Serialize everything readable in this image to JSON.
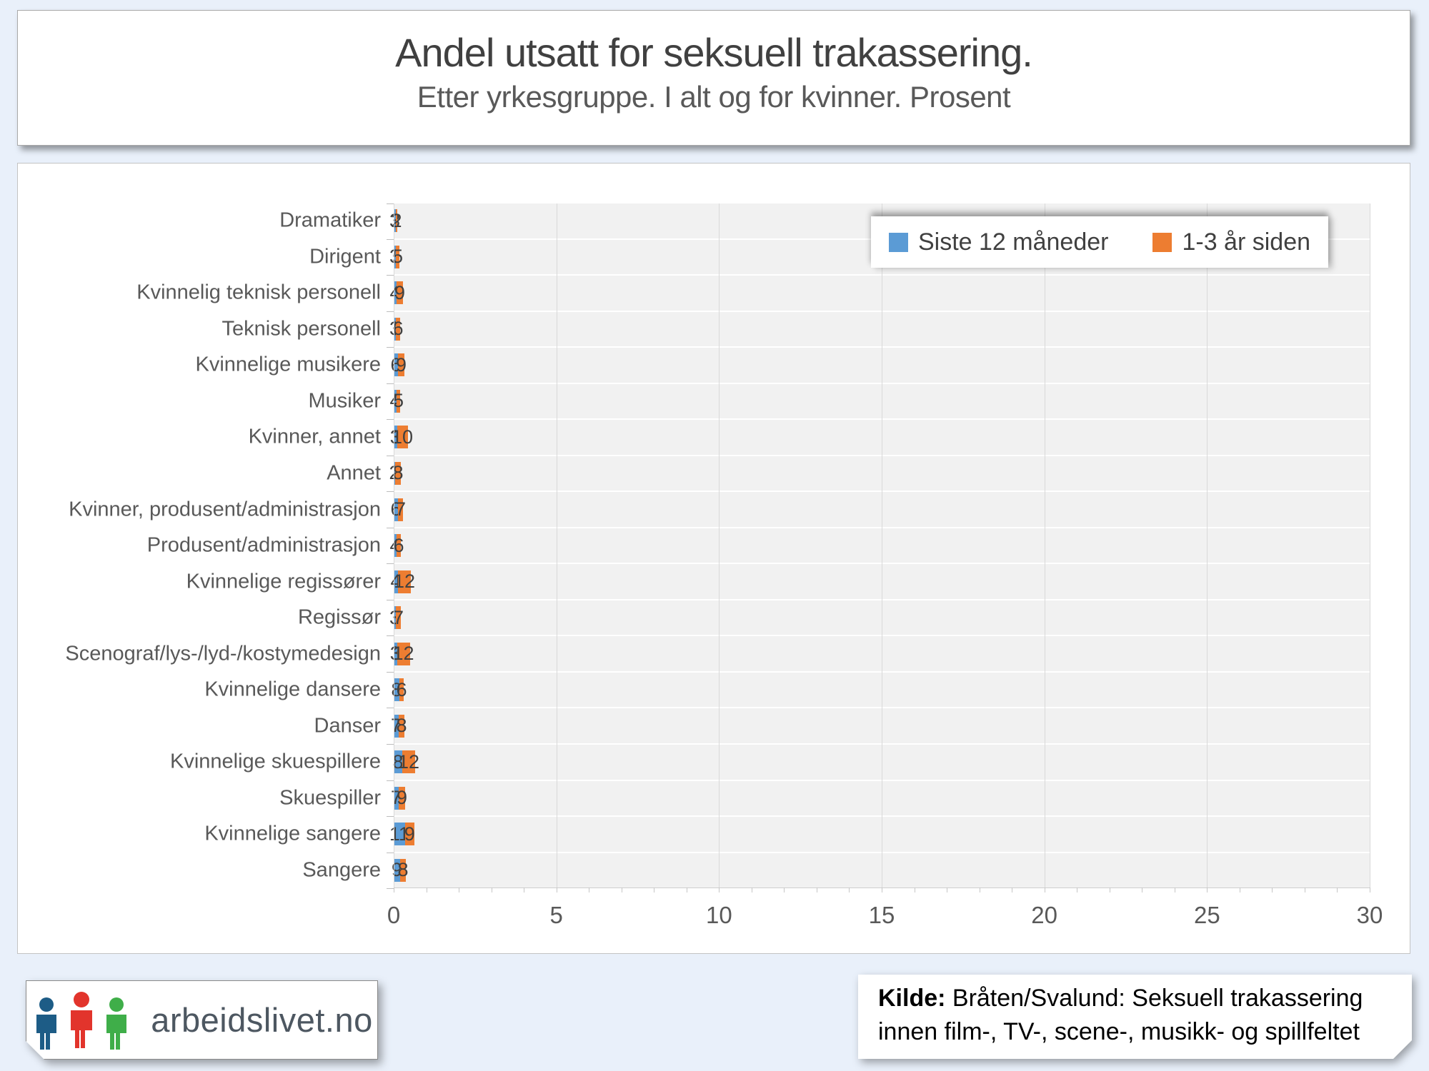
{
  "page": {
    "title": "Andel utsatt for seksuell trakassering.",
    "subtitle": "Etter yrkesgruppe. I alt og for kvinner. Prosent"
  },
  "chart_data": {
    "type": "bar",
    "orientation": "horizontal",
    "stacked": true,
    "title": "Andel utsatt for seksuell trakassering.",
    "subtitle": "Etter yrkesgruppe. I alt og for kvinner. Prosent",
    "xlim": [
      0,
      30
    ],
    "x_ticks": [
      0,
      5,
      10,
      15,
      20,
      25,
      30
    ],
    "minor_tick_step": 1,
    "grid": "vertical",
    "legend_position": "inside-top-right",
    "plot_background": "#f1f1f1",
    "categories": [
      "Dramatiker",
      "Dirigent",
      "Kvinnelig teknisk personell",
      "Teknisk personell",
      "Kvinnelige musikere",
      "Musiker",
      "Kvinner, annet",
      "Annet",
      "Kvinner, produsent/administrasjon",
      "Produsent/administrasjon",
      "Kvinnelige regissører",
      "Regissør",
      "Scenograf/lys-/lyd-/kostymedesign",
      "Kvinnelige dansere",
      "Danser",
      "Kvinnelige skuespillere",
      "Skuespiller",
      "Kvinnelige sangere",
      "Sangere"
    ],
    "series": [
      {
        "name": "Siste 12 måneder",
        "color": "#5B9BD5",
        "values": [
          3,
          3,
          4,
          3,
          6,
          4,
          3,
          2,
          6,
          4,
          4,
          3,
          3,
          8,
          7,
          8,
          7,
          11,
          9
        ]
      },
      {
        "name": "1-3 år siden",
        "color": "#ED7D31",
        "values": [
          2,
          5,
          9,
          6,
          9,
          5,
          10,
          8,
          7,
          6,
          12,
          7,
          12,
          6,
          8,
          12,
          9,
          9,
          8
        ]
      }
    ]
  },
  "footer": {
    "logo_text": "arbeidslivet.no",
    "source_label": "Kilde:",
    "source_line1": " Bråten/Svalund: Seksuell trakassering",
    "source_line2": "innen film-, TV-, scene-, musikk- og spillfeltet"
  }
}
